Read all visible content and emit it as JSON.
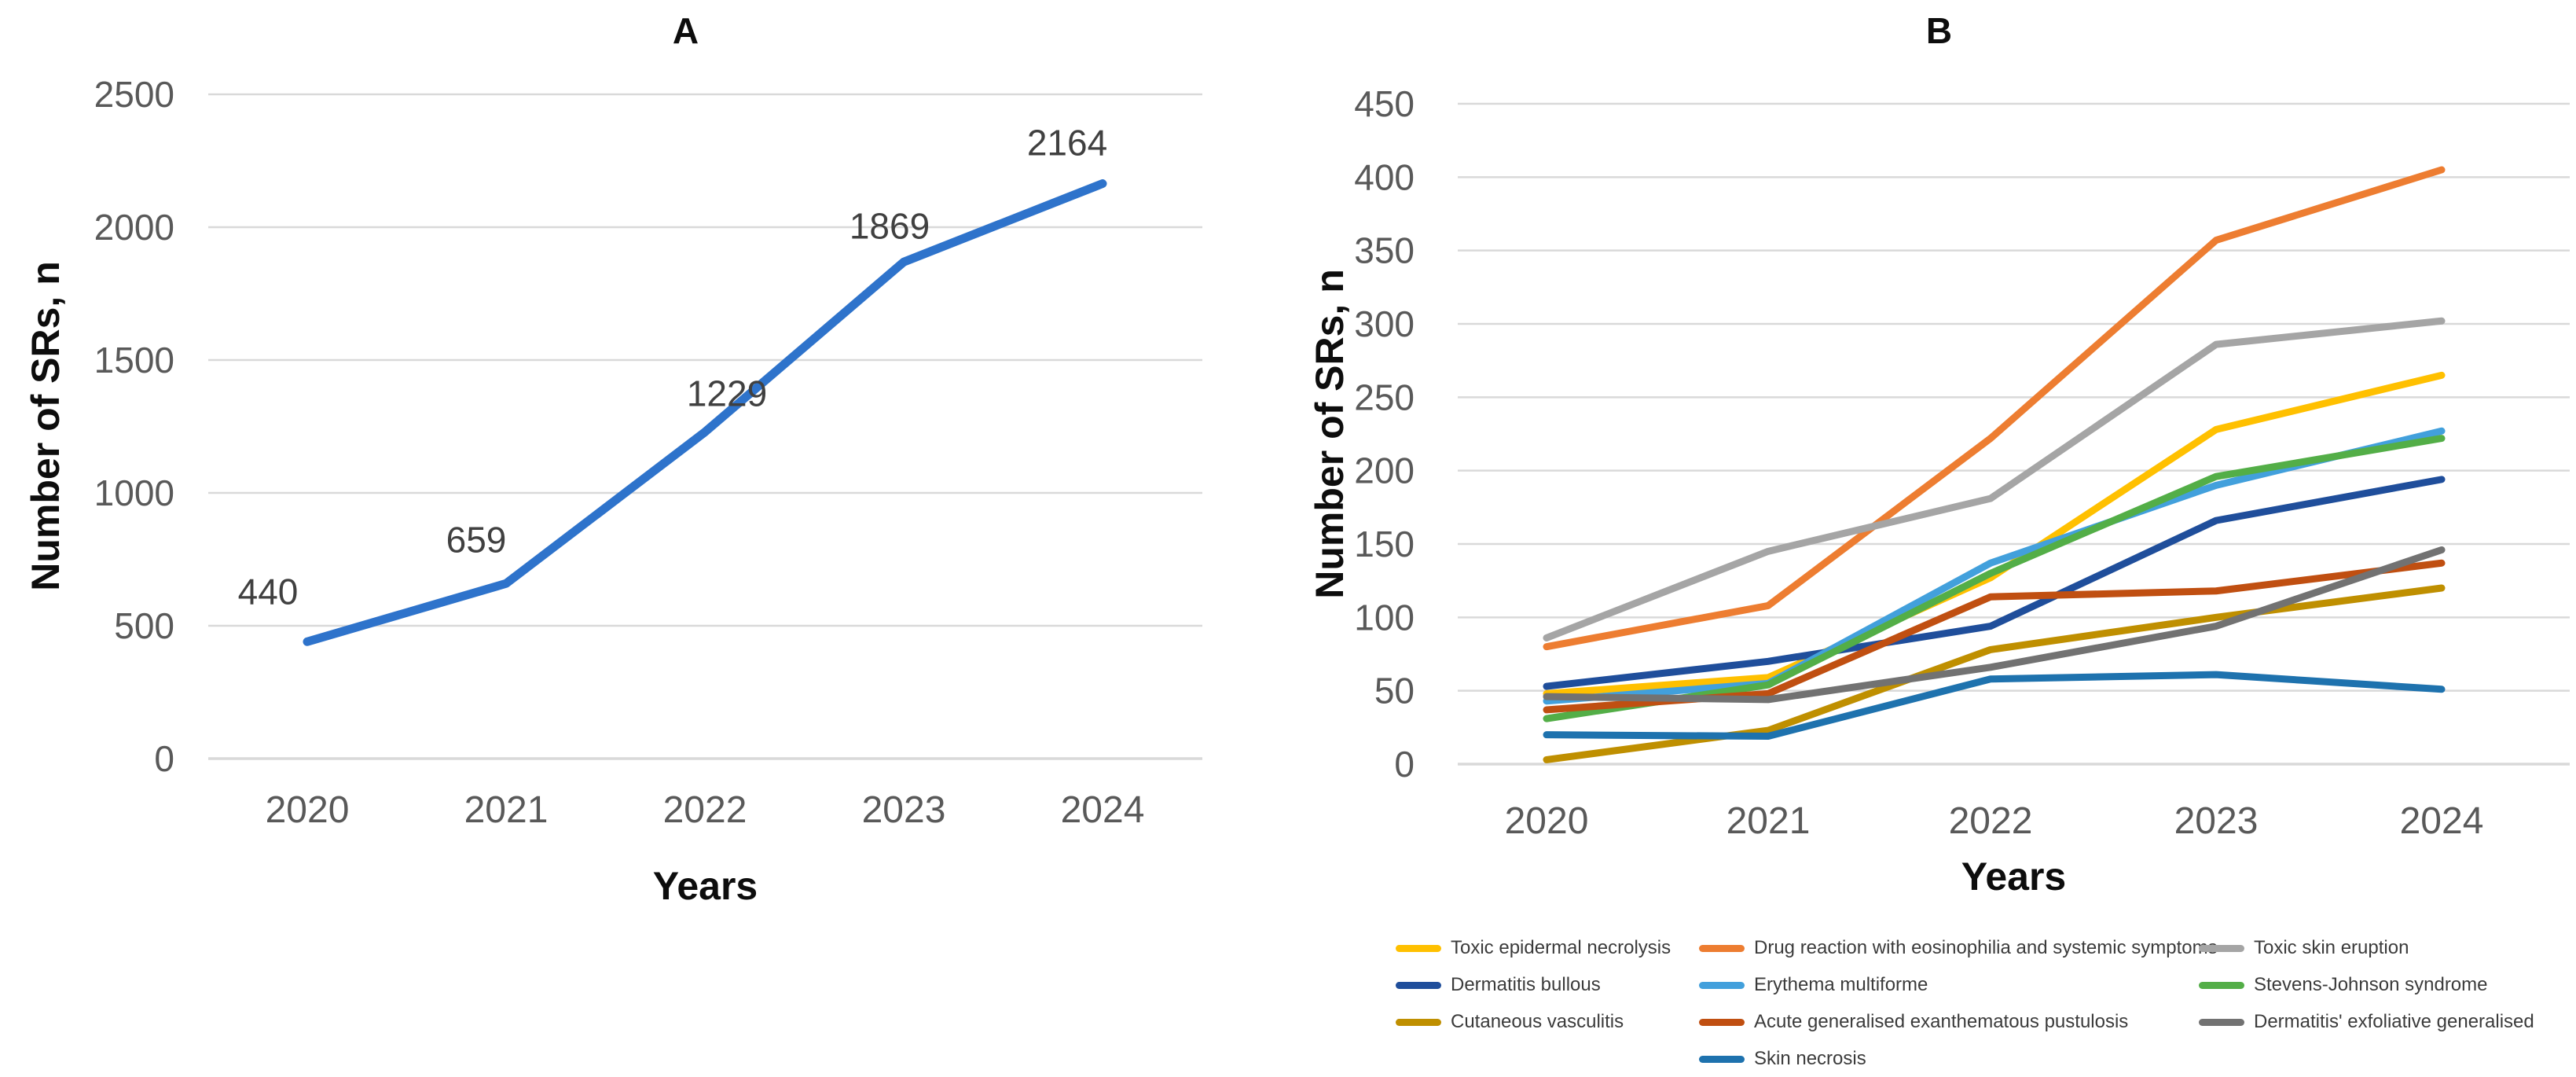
{
  "page": {
    "background": "#FFFFFF",
    "tick_color": "#595959",
    "grid_color": "#D9D9D9",
    "data_label_color": "#404040"
  },
  "chart_data": [
    {
      "type": "line",
      "title": "A",
      "xlabel": "Years",
      "ylabel": "Number of SRs, n",
      "x_tick_labels": [
        "2020",
        "2021",
        "2022",
        "2023",
        "2024"
      ],
      "y_ticks": [
        0,
        500,
        1000,
        1500,
        2000,
        2500
      ],
      "ylim": [
        0,
        2500
      ],
      "grid": "horizontal",
      "legend_position": "none",
      "series": [
        {
          "name": "Number of SRs",
          "color": "#2E73CB",
          "values": [
            440,
            659,
            1229,
            1869,
            2164
          ],
          "show_data_labels": true
        }
      ]
    },
    {
      "type": "line",
      "title": "B",
      "xlabel": "Years",
      "ylabel": "Number of SRs, n",
      "x_tick_labels": [
        "2020",
        "2021",
        "2022",
        "2023",
        "2024"
      ],
      "y_ticks": [
        0,
        50,
        100,
        150,
        200,
        250,
        300,
        350,
        400,
        450
      ],
      "ylim": [
        0,
        450
      ],
      "grid": "horizontal",
      "legend_position": "bottom",
      "series": [
        {
          "name": "Toxic epidermal necrolysis",
          "color": "#FFC000",
          "values": [
            48,
            59,
            127,
            228,
            265
          ]
        },
        {
          "name": "Drug reaction with eosinophilia and systemic symptoms",
          "color": "#ED7D31",
          "values": [
            80,
            108,
            222,
            357,
            405
          ]
        },
        {
          "name": "Toxic skin eruption",
          "color": "#A5A5A5",
          "values": [
            86,
            145,
            181,
            286,
            302
          ]
        },
        {
          "name": "Dermatitis bullous",
          "color": "#1F4E9B",
          "values": [
            53,
            70,
            94,
            166,
            194
          ]
        },
        {
          "name": "Erythema multiforme",
          "color": "#42A0DC",
          "values": [
            43,
            55,
            137,
            190,
            227
          ]
        },
        {
          "name": "Stevens-Johnson syndrome",
          "color": "#53AE47",
          "values": [
            31,
            54,
            130,
            196,
            222
          ]
        },
        {
          "name": "Cutaneous vasculitis",
          "color": "#BF8F00",
          "values": [
            3,
            23,
            78,
            100,
            120
          ]
        },
        {
          "name": "Acute generalised exanthematous pustulosis",
          "color": "#C04F11",
          "values": [
            37,
            48,
            114,
            118,
            137
          ]
        },
        {
          "name": "Dermatitis' exfoliative generalised",
          "color": "#727272",
          "values": [
            46,
            44,
            66,
            94,
            146
          ]
        },
        {
          "name": "Skin necrosis",
          "color": "#1E72AE",
          "values": [
            20,
            19,
            58,
            61,
            51
          ]
        }
      ],
      "legend_columns": [
        [
          0,
          3,
          6
        ],
        [
          1,
          4,
          7,
          9
        ],
        [
          2,
          5,
          8
        ]
      ]
    }
  ]
}
